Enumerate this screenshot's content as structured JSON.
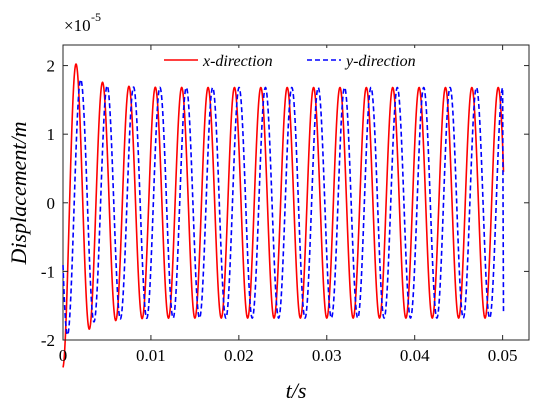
{
  "chart_data": {
    "type": "line",
    "xlabel": "t/s",
    "ylabel": "Displacement/m",
    "y_multiplier": {
      "base": "×10",
      "exponent": "-5"
    },
    "xlim": [
      0,
      0.053
    ],
    "ylim": [
      -2,
      2.3
    ],
    "x_ticks": [
      0,
      0.01,
      0.02,
      0.03,
      0.04,
      0.05
    ],
    "x_tick_labels": [
      "0",
      "0.01",
      "0.02",
      "0.03",
      "0.04",
      "0.05"
    ],
    "y_ticks": [
      -2,
      -1,
      0,
      1,
      2
    ],
    "y_tick_labels": [
      "-2",
      "-1",
      "0",
      "1",
      "2"
    ],
    "legend_position": "top",
    "series": [
      {
        "name": "x-direction",
        "color": "#ff0000",
        "style": "solid",
        "period": 0.003,
        "amplitude_start": 2.0,
        "amplitude_steady": 1.68,
        "offset": 0.0,
        "t_end": 0.05,
        "end_value": 0.45
      },
      {
        "name": "y-direction",
        "color": "#0000ff",
        "style": "dashed",
        "period": 0.003,
        "amplitude_start": 2.0,
        "amplitude_steady": 1.68,
        "offset": 0.0,
        "t_end": 0.05,
        "end_value": -1.62
      }
    ]
  }
}
